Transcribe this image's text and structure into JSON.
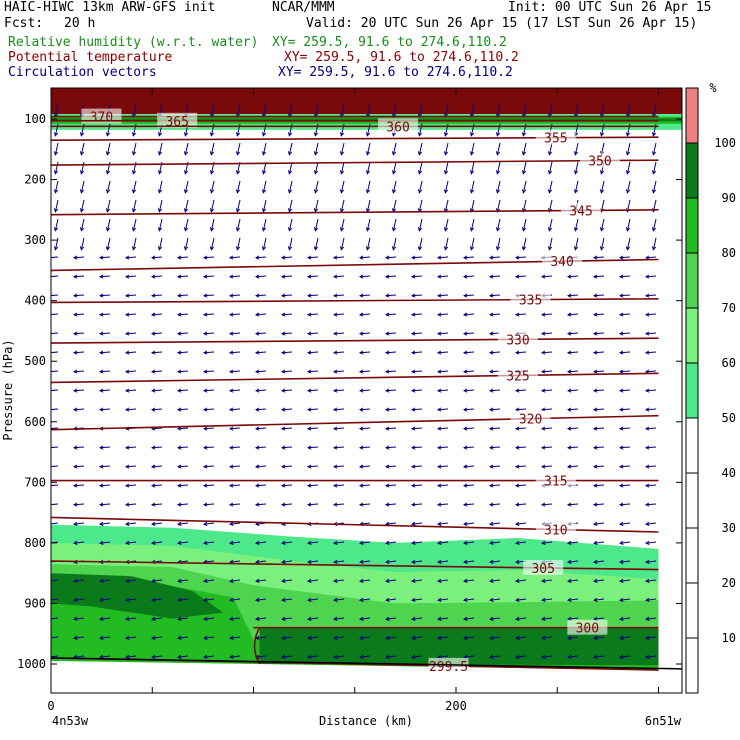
{
  "header": {
    "model": "HAIC-HIWC 13km ARW-GFS init",
    "center": "NCAR/MMM",
    "init": "Init: 00 UTC Sun 26 Apr 15",
    "fcst_label": "Fcst:",
    "fcst_value": "20 h",
    "valid": "Valid: 20 UTC Sun 26 Apr 15 (17 LST Sun 26 Apr 15)",
    "fields": [
      {
        "name": "Relative humidity (w.r.t. water)",
        "xy": "XY= 259.5, 91.6 to 274.6,110.2",
        "color": "#1a8c1a"
      },
      {
        "name": "Potential temperature",
        "xy": "XY= 259.5, 91.6 to 274.6,110.2",
        "color": "#8b0000"
      },
      {
        "name": "Circulation vectors",
        "xy": "XY= 259.5, 91.6 to 274.6,110.2",
        "color": "#000080"
      }
    ]
  },
  "chart_data": {
    "type": "cross-section",
    "ylabel": "Pressure (hPa)",
    "xlabel": "Distance (km)",
    "x_left_label": "4n53w",
    "x_right_label": "6n51w",
    "xlim": [
      0,
      300
    ],
    "ylim": [
      1050,
      60
    ],
    "y_axis_inverted": true,
    "x_ticks": [
      0,
      200
    ],
    "y_ticks": [
      100,
      200,
      300,
      400,
      500,
      600,
      700,
      800,
      900,
      1000
    ],
    "colorbar": {
      "unit": "%",
      "ticks": [
        10,
        20,
        30,
        40,
        50,
        60,
        70,
        80,
        90,
        100
      ],
      "bins": [
        {
          "from": 0,
          "to": 50,
          "color": "#ffffff"
        },
        {
          "from": 50,
          "to": 60,
          "color": "#4de88a"
        },
        {
          "from": 60,
          "to": 70,
          "color": "#7cf07c"
        },
        {
          "from": 70,
          "to": 80,
          "color": "#4ed44e"
        },
        {
          "from": 80,
          "to": 90,
          "color": "#22bb22"
        },
        {
          "from": 90,
          "to": 100,
          "color": "#0b7a1a"
        },
        {
          "from": 100,
          "to": 110,
          "color": "#f08080"
        }
      ]
    },
    "theta_contours": [
      {
        "label": "370",
        "x": [
          0,
          300
        ],
        "p": [
          96,
          96
        ]
      },
      {
        "label": "365",
        "x": [
          0,
          300
        ],
        "p": [
          103,
          103
        ]
      },
      {
        "label": "360",
        "x": [
          0,
          300
        ],
        "p": [
          112,
          112
        ]
      },
      {
        "label": "355",
        "x": [
          0,
          300
        ],
        "p": [
          135,
          130
        ]
      },
      {
        "label": "350",
        "x": [
          0,
          300
        ],
        "p": [
          176,
          168
        ]
      },
      {
        "label": "345",
        "x": [
          0,
          300
        ],
        "p": [
          258,
          250
        ]
      },
      {
        "label": "340",
        "x": [
          0,
          300
        ],
        "p": [
          350,
          332
        ]
      },
      {
        "label": "335",
        "x": [
          0,
          300
        ],
        "p": [
          403,
          397
        ]
      },
      {
        "label": "330",
        "x": [
          0,
          300
        ],
        "p": [
          470,
          462
        ]
      },
      {
        "label": "325",
        "x": [
          0,
          300
        ],
        "p": [
          535,
          520
        ]
      },
      {
        "label": "320",
        "x": [
          0,
          300
        ],
        "p": [
          613,
          590
        ]
      },
      {
        "label": "315",
        "x": [
          0,
          300
        ],
        "p": [
          697,
          697
        ]
      },
      {
        "label": "310",
        "x": [
          0,
          300
        ],
        "p": [
          758,
          782
        ]
      },
      {
        "label": "305",
        "x": [
          0,
          300
        ],
        "p": [
          830,
          844
        ]
      },
      {
        "label": "300",
        "x": [
          100,
          300
        ],
        "p": [
          940,
          940
        ]
      },
      {
        "label": "299.5",
        "x": [
          0,
          300
        ],
        "p": [
          990,
          1010
        ]
      }
    ],
    "vectors": "uniform field of circulation vectors, predominantly from right to left"
  }
}
